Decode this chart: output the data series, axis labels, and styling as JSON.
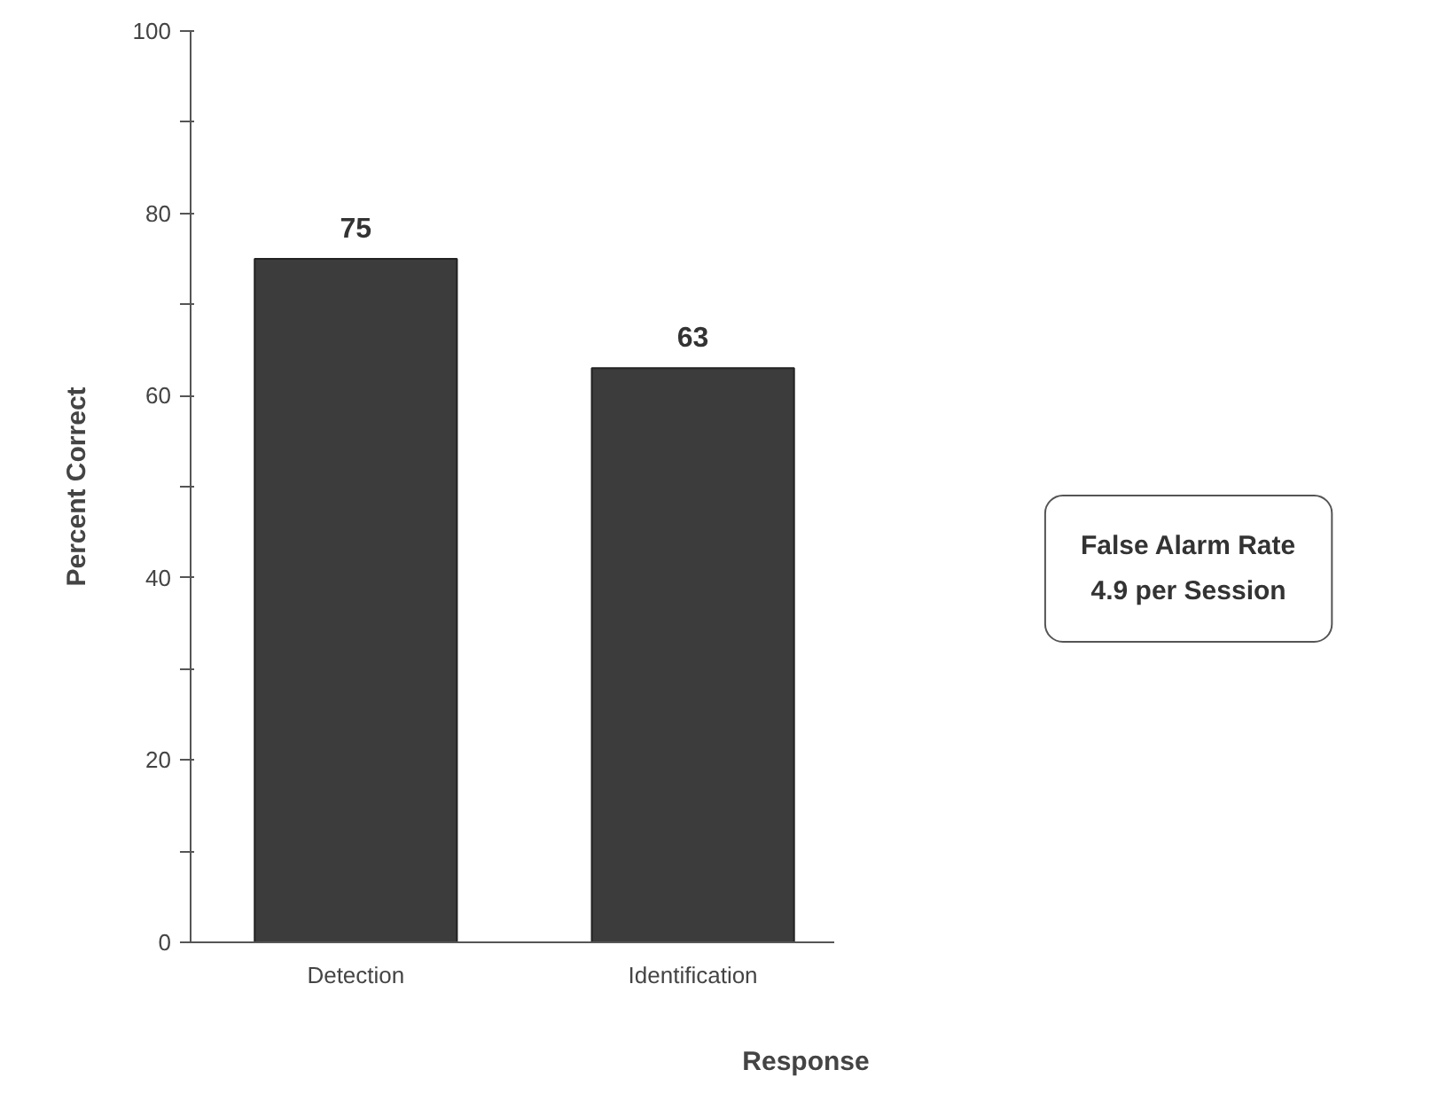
{
  "chart_data": {
    "type": "bar",
    "categories": [
      "Detection",
      "Identification"
    ],
    "values": [
      75,
      63
    ],
    "color": "#3c3c3c",
    "data_labels": true,
    "xlabel": "Response",
    "ylabel": "Percent Correct",
    "ylim": [
      0,
      100
    ],
    "yticks": [
      0,
      {
        "value": 10,
        "label": null
      },
      20,
      {
        "value": 30,
        "label": null
      },
      40,
      {
        "value": 50,
        "label": null
      },
      60,
      {
        "value": 70,
        "label": null
      },
      80,
      {
        "value": 90,
        "label": null
      },
      100
    ],
    "grid": false,
    "annotations": [
      "False Alarm Rate\n4.9 per Session"
    ]
  }
}
